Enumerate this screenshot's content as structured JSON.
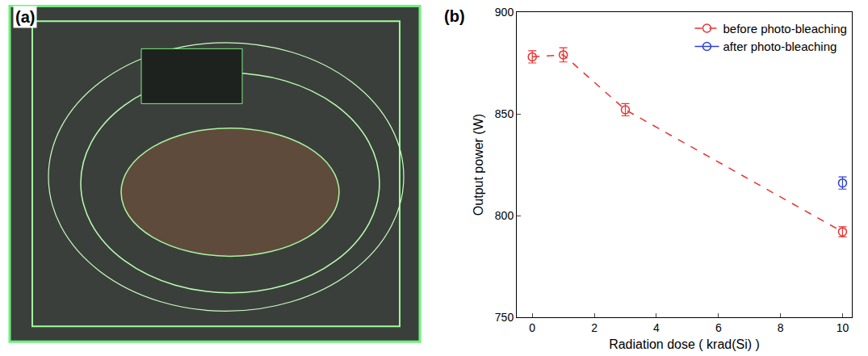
{
  "photo_panel": {
    "label": "(a)"
  },
  "chart_data": {
    "type": "scatter",
    "panel_label": "(b)",
    "x_label": "Radiation dose ( krad(Si) )",
    "y_label": "Output power (W)",
    "xlim": [
      -0.5,
      10.3
    ],
    "xticks": [
      0,
      2,
      4,
      6,
      8,
      10
    ],
    "ylim": [
      750,
      900
    ],
    "yticks": [
      750,
      800,
      850,
      900
    ],
    "grid": false,
    "legend": "top-right",
    "series": [
      {
        "name": "before photo-bleaching",
        "color": "#e8312f",
        "marker": "circle-open",
        "line_style": "dash",
        "x": [
          0,
          1,
          3,
          10
        ],
        "values": [
          878,
          879,
          852,
          792
        ],
        "errors": [
          3,
          3.5,
          3,
          2.5
        ]
      },
      {
        "name": "after photo-bleaching",
        "color": "#2b3fd6",
        "marker": "circle-open",
        "line_style": "solid",
        "x": [
          10
        ],
        "values": [
          816
        ],
        "errors": [
          3
        ]
      }
    ]
  }
}
